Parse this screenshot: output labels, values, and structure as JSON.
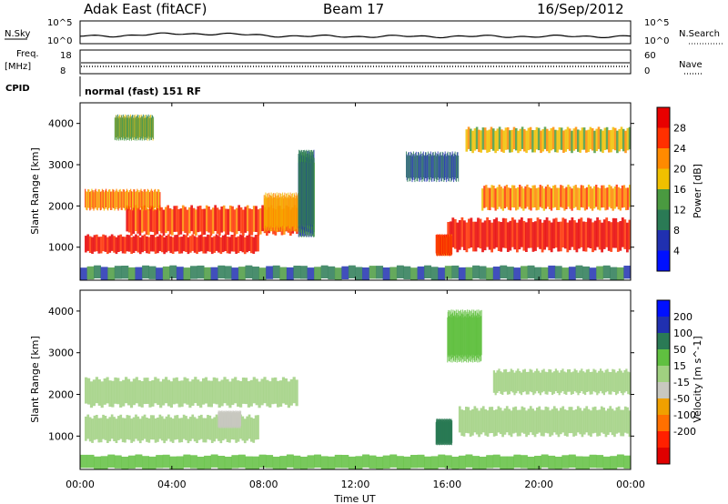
{
  "header": {
    "site": "Adak East (fitACF)",
    "beam": "Beam 17",
    "date": "16/Sep/2012"
  },
  "top_panels": {
    "nsky_label": "N.Sky",
    "nsky_tick_top": "10^5",
    "nsky_tick_bottom": "10^0",
    "nsearch_label": "N.Search",
    "nsearch_tick_top": "10^5",
    "nsearch_tick_bottom": "10^0",
    "freq_label_1": "Freq.",
    "freq_label_2": "[MHz]",
    "freq_tick_top": "18",
    "freq_tick_bottom": "8",
    "nave_label": "Nave",
    "nave_tick_top": "60",
    "nave_tick_bottom": "0",
    "cpid_label": "CPID",
    "cpid_value": "normal (fast) 151 RF"
  },
  "chart_data": [
    {
      "type": "heatmap",
      "name": "power",
      "ylabel": "Slant Range [km]",
      "ylim": [
        200,
        4500
      ],
      "y_ticks": [
        "1000",
        "2000",
        "3000",
        "4000"
      ],
      "colorbar_label": "Power [dB]",
      "colorbar_ticks": [
        "4",
        "8",
        "12",
        "16",
        "20",
        "24",
        "28"
      ],
      "colors": [
        "#0010ff",
        "#2030b0",
        "#2a7a55",
        "#4a9a40",
        "#f0c000",
        "#ff8a00",
        "#ff3000",
        "#e80000"
      ],
      "bands": [
        {
          "x0": 0.2,
          "x1": 7.8,
          "y0": 850,
          "y1": 1300,
          "v": 29
        },
        {
          "x0": 2.0,
          "x1": 9.5,
          "y0": 1300,
          "y1": 2000,
          "v": 26
        },
        {
          "x0": 0.2,
          "x1": 3.5,
          "y0": 1900,
          "y1": 2400,
          "v": 22
        },
        {
          "x0": 8.0,
          "x1": 9.8,
          "y0": 1400,
          "y1": 2300,
          "v": 21
        },
        {
          "x0": 16.0,
          "x1": 24.0,
          "y0": 900,
          "y1": 1700,
          "v": 29
        },
        {
          "x0": 17.5,
          "x1": 24.0,
          "y0": 1900,
          "y1": 2500,
          "v": 22
        },
        {
          "x0": 16.8,
          "x1": 24.0,
          "y0": 3300,
          "y1": 3900,
          "v": 18
        },
        {
          "x0": 15.5,
          "x1": 16.2,
          "y0": 800,
          "y1": 1300,
          "v": 26
        },
        {
          "x0": 14.2,
          "x1": 16.5,
          "y0": 2600,
          "y1": 3300,
          "v": 8
        },
        {
          "x0": 9.5,
          "x1": 10.2,
          "y0": 1300,
          "y1": 3300,
          "v": 10
        },
        {
          "x0": 1.5,
          "x1": 3.2,
          "y0": 3600,
          "y1": 4200,
          "v": 14
        },
        {
          "x0": 0.0,
          "x1": 24.0,
          "y0": 200,
          "y1": 550,
          "v": 10
        }
      ]
    },
    {
      "type": "heatmap",
      "name": "velocity",
      "ylabel": "Slant Range [km]",
      "xlabel": "Time UT",
      "ylim": [
        200,
        4500
      ],
      "x_ticks": [
        "00:00",
        "04:00",
        "08:00",
        "12:00",
        "16:00",
        "20:00",
        "00:00"
      ],
      "y_ticks": [
        "1000",
        "2000",
        "3000",
        "4000"
      ],
      "colorbar_label": "Velocity [m s^-1]",
      "colorbar_ticks": [
        "200",
        "100",
        "50",
        "15",
        "-15",
        "-50",
        "-100",
        "-200"
      ],
      "colors": [
        "#0010ff",
        "#2030b0",
        "#2a7a55",
        "#60c040",
        "#a0d080",
        "#c8c8c0",
        "#f0a000",
        "#ff7000",
        "#ff2000",
        "#e00000"
      ],
      "bands": [
        {
          "x0": 0.2,
          "x1": 7.8,
          "y0": 850,
          "y1": 1500,
          "v": 0
        },
        {
          "x0": 0.2,
          "x1": 9.5,
          "y0": 1700,
          "y1": 2400,
          "v": 0
        },
        {
          "x0": 16.5,
          "x1": 24.0,
          "y0": 1000,
          "y1": 1700,
          "v": 0
        },
        {
          "x0": 18.0,
          "x1": 24.0,
          "y0": 2000,
          "y1": 2600,
          "v": 0
        },
        {
          "x0": 15.5,
          "x1": 16.2,
          "y0": 800,
          "y1": 1400,
          "v": 60
        },
        {
          "x0": 16.0,
          "x1": 17.5,
          "y0": 2800,
          "y1": 4000,
          "v": 30
        },
        {
          "x0": 6.0,
          "x1": 7.0,
          "y0": 1200,
          "y1": 1600,
          "v": -40
        },
        {
          "x0": 0.0,
          "x1": 24.0,
          "y0": 200,
          "y1": 550,
          "v": 35
        }
      ]
    }
  ]
}
